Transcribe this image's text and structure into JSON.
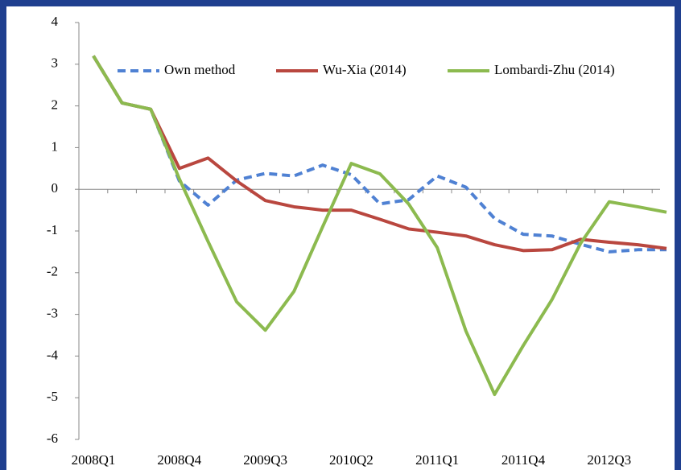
{
  "chart_data": {
    "type": "line",
    "categories": [
      "2008Q1",
      null,
      null,
      "2008Q4",
      null,
      null,
      "2009Q3",
      null,
      null,
      "2010Q2",
      null,
      null,
      "2011Q1",
      null,
      null,
      "2011Q4",
      null,
      null,
      "2012Q3",
      null,
      null
    ],
    "series": [
      {
        "name": "Own method",
        "color": "#4f81d3",
        "dash": true,
        "values": [
          3.2,
          2.07,
          1.92,
          0.2,
          -0.38,
          0.22,
          0.38,
          0.32,
          0.58,
          0.35,
          -0.35,
          -0.25,
          0.32,
          0.05,
          -0.7,
          -1.08,
          -1.12,
          -1.32,
          -1.5,
          -1.45,
          -1.45
        ]
      },
      {
        "name": "Wu-Xia (2014)",
        "color": "#b9473f",
        "dash": false,
        "values": [
          3.2,
          2.07,
          1.92,
          0.5,
          0.75,
          0.2,
          -0.27,
          -0.42,
          -0.5,
          -0.5,
          -0.72,
          -0.95,
          -1.03,
          -1.12,
          -1.33,
          -1.47,
          -1.45,
          -1.2,
          -1.27,
          -1.33,
          -1.42
        ]
      },
      {
        "name": "Lombardi-Zhu (2014)",
        "color": "#8cba4f",
        "dash": false,
        "values": [
          3.2,
          2.07,
          1.92,
          0.25,
          -1.25,
          -2.7,
          -3.38,
          -2.45,
          -0.9,
          0.62,
          0.37,
          -0.35,
          -1.4,
          -3.4,
          -4.92,
          -3.75,
          -2.65,
          -1.3,
          -0.3,
          -0.42,
          -0.55
        ]
      }
    ],
    "ylim": [
      -6,
      4
    ],
    "yticks": [
      -6,
      -5,
      -4,
      -3,
      -2,
      -1,
      0,
      1,
      2,
      3,
      4
    ]
  }
}
